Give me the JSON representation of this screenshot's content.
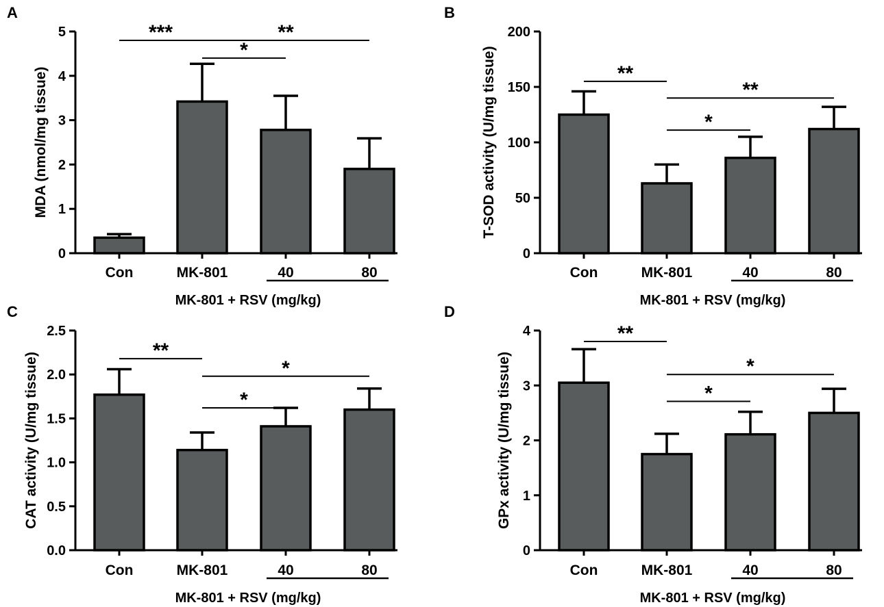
{
  "chart_data": [
    {
      "type": "bar",
      "panel": "A",
      "ylabel": "MDA (nmol/mg tissue)",
      "ylim": [
        0,
        5
      ],
      "yticks": [
        0,
        1,
        2,
        3,
        4,
        5
      ],
      "ytick_labels": [
        "0",
        "1",
        "2",
        "3",
        "4",
        "5"
      ],
      "categories": [
        "Con",
        "MK-801",
        "40",
        "80"
      ],
      "values": [
        0.35,
        3.42,
        2.78,
        1.9
      ],
      "errors": [
        0.08,
        0.85,
        0.77,
        0.69
      ],
      "group_label": "MK-801 + RSV (mg/kg)",
      "bar_color": "#595c5c",
      "significance": [
        {
          "from": 0,
          "to": 1,
          "y": 4.8,
          "label": "***"
        },
        {
          "from": 1,
          "to": 3,
          "y": 4.8,
          "label": "**"
        },
        {
          "from": 1,
          "to": 2,
          "y": 4.4,
          "label": "*"
        }
      ]
    },
    {
      "type": "bar",
      "panel": "B",
      "ylabel": "T-SOD activity (U/mg tissue)",
      "ylim": [
        0,
        200
      ],
      "yticks": [
        0,
        50,
        100,
        150,
        200
      ],
      "ytick_labels": [
        "0",
        "50",
        "100",
        "150",
        "200"
      ],
      "categories": [
        "Con",
        "MK-801",
        "40",
        "80"
      ],
      "values": [
        125,
        63,
        86,
        112
      ],
      "errors": [
        21,
        17,
        19,
        20
      ],
      "group_label": "MK-801 + RSV (mg/kg)",
      "bar_color": "#595c5c",
      "significance": [
        {
          "from": 0,
          "to": 1,
          "y": 155,
          "label": "**"
        },
        {
          "from": 1,
          "to": 3,
          "y": 140,
          "label": "**"
        },
        {
          "from": 1,
          "to": 2,
          "y": 111,
          "label": "*"
        }
      ]
    },
    {
      "type": "bar",
      "panel": "C",
      "ylabel": "CAT activity (U/mg tissue)",
      "ylim": [
        0,
        2.5
      ],
      "yticks": [
        0,
        0.5,
        1.0,
        1.5,
        2.0,
        2.5
      ],
      "ytick_labels": [
        "0.0",
        "0.5",
        "1.0",
        "1.5",
        "2.0",
        "2.5"
      ],
      "categories": [
        "Con",
        "MK-801",
        "40",
        "80"
      ],
      "values": [
        1.77,
        1.14,
        1.41,
        1.6
      ],
      "errors": [
        0.29,
        0.2,
        0.21,
        0.24
      ],
      "group_label": "MK-801 + RSV (mg/kg)",
      "bar_color": "#595c5c",
      "significance": [
        {
          "from": 0,
          "to": 1,
          "y": 2.18,
          "label": "**"
        },
        {
          "from": 1,
          "to": 3,
          "y": 1.98,
          "label": "*"
        },
        {
          "from": 1,
          "to": 2,
          "y": 1.62,
          "label": "*"
        }
      ]
    },
    {
      "type": "bar",
      "panel": "D",
      "ylabel": "GPx activity (U/mg tissue)",
      "ylim": [
        0,
        4
      ],
      "yticks": [
        0,
        1,
        2,
        3,
        4
      ],
      "ytick_labels": [
        "0",
        "1",
        "2",
        "3",
        "4"
      ],
      "categories": [
        "Con",
        "MK-801",
        "40",
        "80"
      ],
      "values": [
        3.05,
        1.75,
        2.11,
        2.5
      ],
      "errors": [
        0.61,
        0.37,
        0.41,
        0.44
      ],
      "group_label": "MK-801 + RSV (mg/kg)",
      "bar_color": "#595c5c",
      "significance": [
        {
          "from": 0,
          "to": 1,
          "y": 3.8,
          "label": "**"
        },
        {
          "from": 1,
          "to": 3,
          "y": 3.2,
          "label": "*"
        },
        {
          "from": 1,
          "to": 2,
          "y": 2.71,
          "label": "*"
        }
      ]
    }
  ]
}
